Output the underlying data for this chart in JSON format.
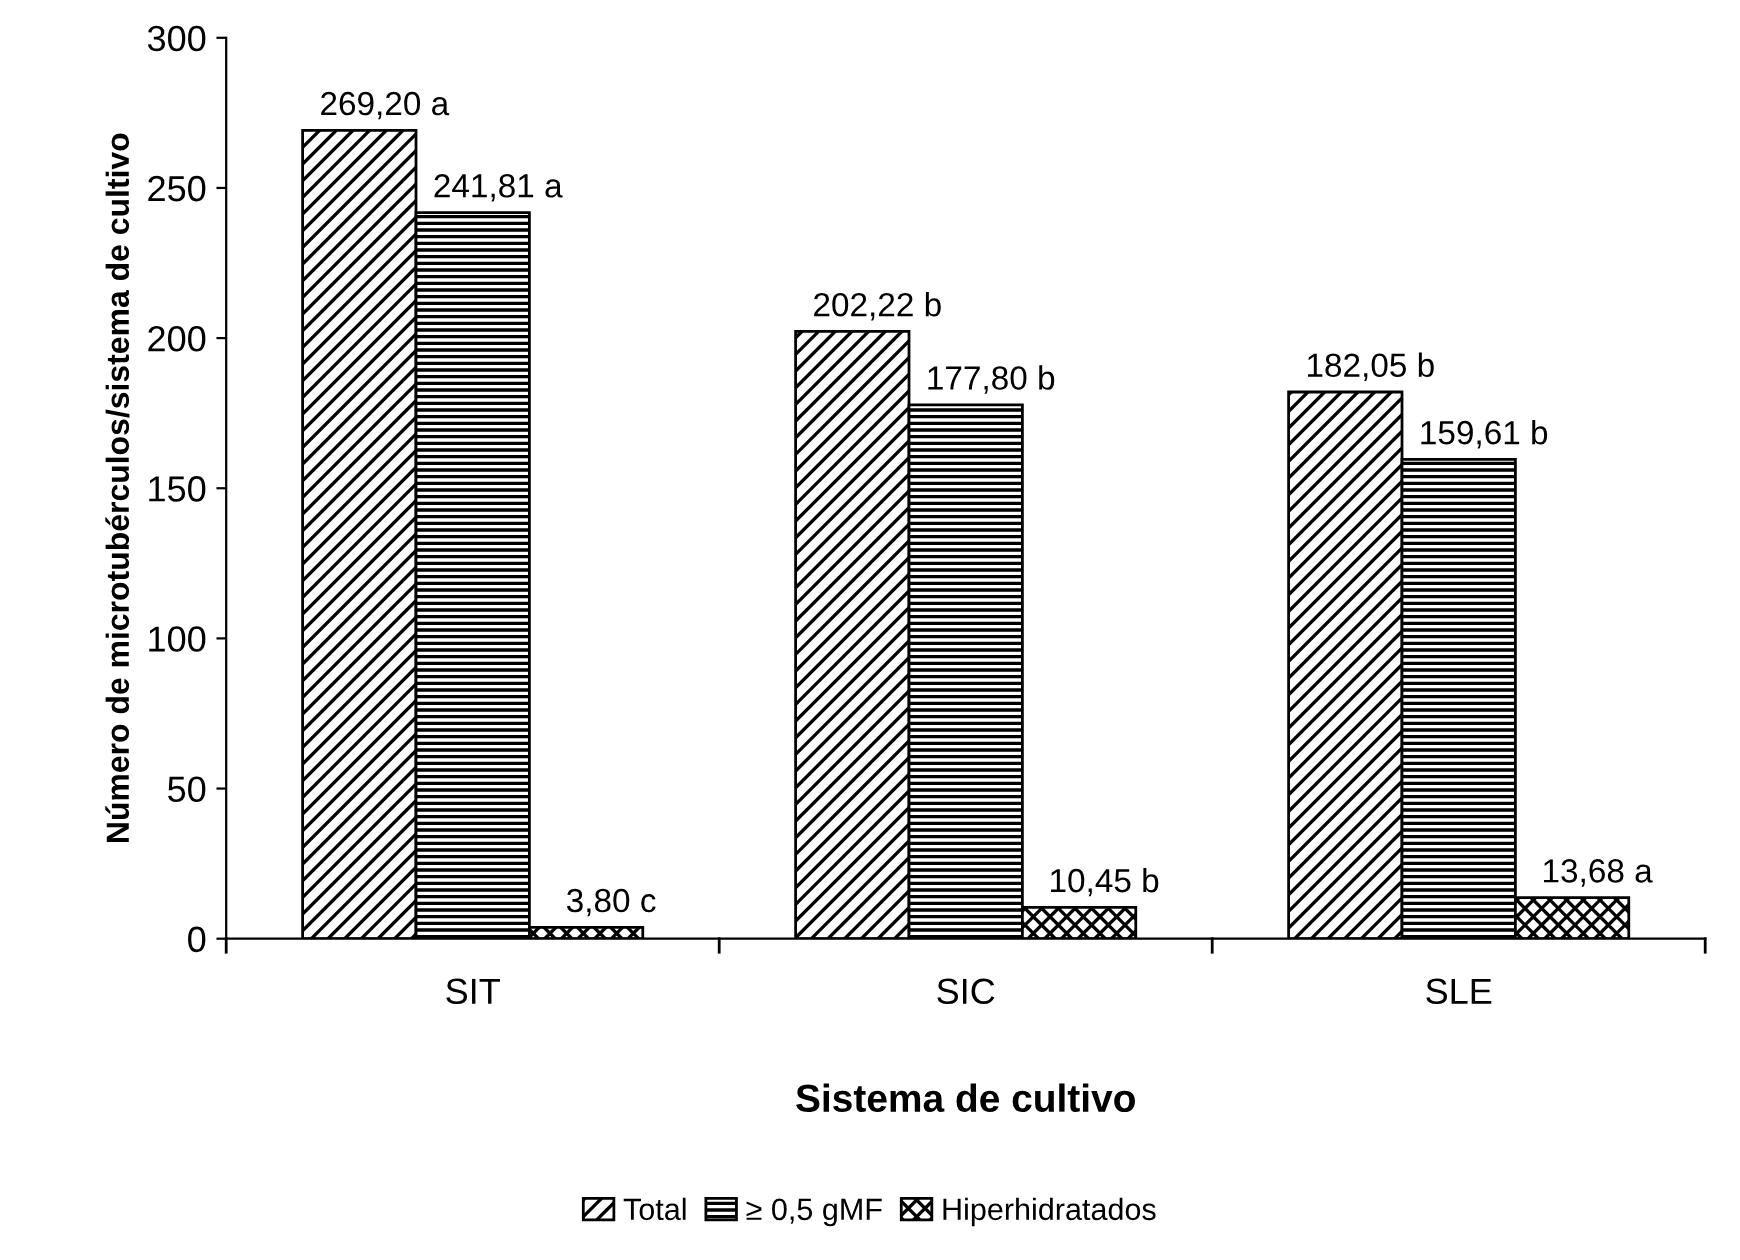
{
  "chart_data": {
    "type": "bar",
    "xlabel": "Sistema de cultivo",
    "ylabel": "Número de microtubérculos/sistema de cultivo",
    "categories": [
      "SIT",
      "SIC",
      "SLE"
    ],
    "series": [
      {
        "name": "Total",
        "color": "#000000",
        "values": [
          269.2,
          202.22,
          182.05
        ],
        "value_labels": [
          "269,20 a",
          "202,22 b",
          "182,05 b"
        ]
      },
      {
        "name": "≥ 0,5 gMF",
        "color": "#000000",
        "values": [
          241.81,
          177.8,
          159.61
        ],
        "value_labels": [
          "241,81 a",
          "177,80 b",
          "159,61 b"
        ]
      },
      {
        "name": "Hiperhidratados",
        "color": "#000000",
        "values": [
          3.8,
          10.45,
          13.68
        ],
        "value_labels": [
          "3,80 c",
          "10,45 b",
          "13,68 a"
        ]
      }
    ],
    "ylim": [
      0,
      300
    ],
    "yticks": [
      0,
      50,
      100,
      150,
      200,
      250,
      300
    ],
    "grid": false,
    "legend": "bottom"
  }
}
